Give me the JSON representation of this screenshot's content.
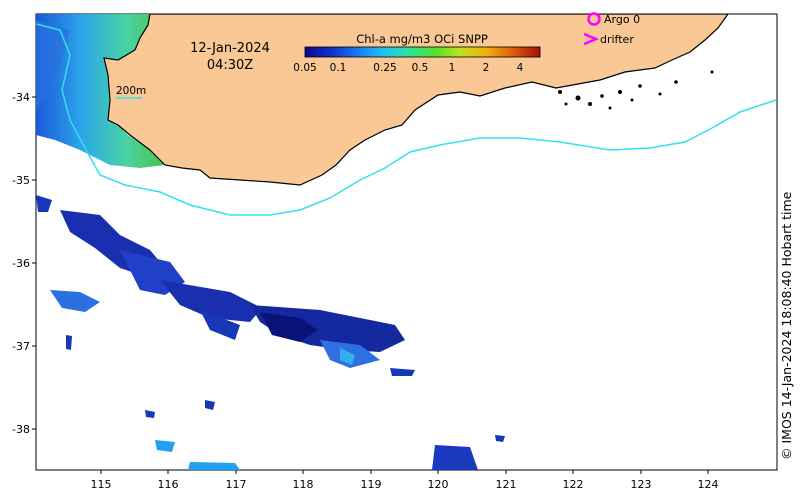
{
  "map": {
    "date": "12-Jan-2024",
    "time": "04:30Z",
    "contour_label": "200m",
    "credit": "© IMOS 14-Jan-2024 18:08:40 Hobart time",
    "land_color": "#f9c894",
    "contour_color": "#33e0f0",
    "lon_ticks": [
      "115",
      "116",
      "117",
      "118",
      "119",
      "120",
      "121",
      "122",
      "123",
      "124"
    ],
    "lat_ticks": [
      "-34",
      "-35",
      "-36",
      "-37",
      "-38"
    ]
  },
  "colorbar": {
    "title": "Chl-a mg/m3 OCi SNPP",
    "ticks": [
      "0.05",
      "0.1",
      "0.25",
      "0.5",
      "1",
      "2",
      "4"
    ],
    "colors": [
      "#08088c",
      "#1030c8",
      "#1878f0",
      "#20c0f8",
      "#30e0a0",
      "#50e030",
      "#c0e020",
      "#f0b010",
      "#e06010",
      "#a01008"
    ]
  },
  "legend": {
    "argo_label": "Argo 0",
    "drifter_label": "drifter",
    "argo_color": "#ff00ff",
    "drifter_color": "#ff00ff"
  }
}
